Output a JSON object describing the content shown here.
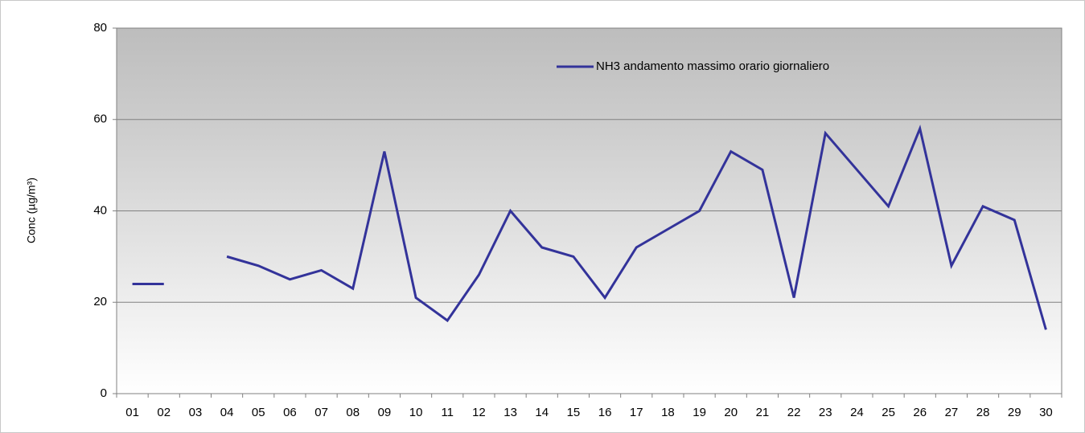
{
  "chart_data": {
    "type": "line",
    "y_label": "Conc (µg/m³)",
    "categories": [
      "01",
      "02",
      "03",
      "04",
      "05",
      "06",
      "07",
      "08",
      "09",
      "10",
      "11",
      "12",
      "13",
      "14",
      "15",
      "16",
      "17",
      "18",
      "19",
      "20",
      "21",
      "22",
      "23",
      "24",
      "25",
      "26",
      "27",
      "28",
      "29",
      "30"
    ],
    "series": [
      {
        "name": "NH3 andamento massimo orario giornaliero",
        "color": "#33339a",
        "values": [
          24,
          24,
          null,
          30,
          28,
          25,
          27,
          23,
          53,
          21,
          16,
          26,
          40,
          32,
          30,
          21,
          32,
          36,
          40,
          53,
          49,
          21,
          57,
          49,
          41,
          58,
          28,
          41,
          38,
          14
        ]
      }
    ],
    "ylim": [
      0,
      80
    ],
    "yticks": [
      0,
      20,
      40,
      60,
      80
    ],
    "grid": true,
    "legend": "top"
  }
}
